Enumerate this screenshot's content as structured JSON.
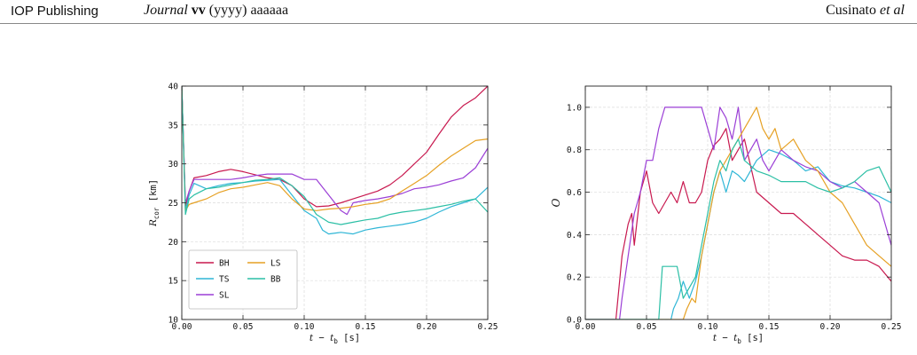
{
  "header": {
    "publisher": "IOP Publishing",
    "journal_name": "Journal",
    "journal_volume": "vv",
    "journal_year_pages": "(yyyy) aaaaaa",
    "authors_name": "Cusinato",
    "authors_etal": "et al"
  },
  "chart_data": [
    {
      "type": "line",
      "xlabel": "t − t_b [s]",
      "ylabel": "R_cor [km]",
      "xlim": [
        0.0,
        0.25
      ],
      "ylim": [
        10,
        40
      ],
      "xticks": [
        "0.00",
        "0.05",
        "0.10",
        "0.15",
        "0.20",
        "0.25"
      ],
      "yticks": [
        "10",
        "15",
        "20",
        "25",
        "30",
        "35",
        "40"
      ],
      "grid": true,
      "legend_position": "bottom-left",
      "series": [
        {
          "name": "BH",
          "color": "#c8194f",
          "x": [
            0.0,
            0.003,
            0.006,
            0.01,
            0.02,
            0.03,
            0.04,
            0.05,
            0.06,
            0.07,
            0.08,
            0.09,
            0.1,
            0.11,
            0.12,
            0.13,
            0.14,
            0.15,
            0.16,
            0.17,
            0.18,
            0.19,
            0.2,
            0.21,
            0.22,
            0.23,
            0.24,
            0.25
          ],
          "y": [
            40,
            24.5,
            26.5,
            28.2,
            28.5,
            29.0,
            29.3,
            29.0,
            28.6,
            28.2,
            28.0,
            27.2,
            25.5,
            24.5,
            24.6,
            25.0,
            25.5,
            26.0,
            26.5,
            27.3,
            28.5,
            30.0,
            31.5,
            33.8,
            36.0,
            37.5,
            38.5,
            40.0
          ]
        },
        {
          "name": "TS",
          "color": "#2fb6d6",
          "x": [
            0.0,
            0.003,
            0.006,
            0.01,
            0.02,
            0.03,
            0.04,
            0.05,
            0.06,
            0.07,
            0.08,
            0.09,
            0.1,
            0.11,
            0.115,
            0.12,
            0.13,
            0.14,
            0.15,
            0.16,
            0.17,
            0.18,
            0.19,
            0.2,
            0.21,
            0.22,
            0.23,
            0.24,
            0.25
          ],
          "y": [
            40,
            24.0,
            26.0,
            27.5,
            26.8,
            27.2,
            27.5,
            27.6,
            27.8,
            27.9,
            28.0,
            26.0,
            24.0,
            23.0,
            21.5,
            21.0,
            21.2,
            21.0,
            21.5,
            21.8,
            22.0,
            22.2,
            22.5,
            23.0,
            23.8,
            24.5,
            25.0,
            25.5,
            27.0
          ]
        },
        {
          "name": "SL",
          "color": "#9b3fd6",
          "x": [
            0.0,
            0.003,
            0.006,
            0.01,
            0.02,
            0.03,
            0.04,
            0.05,
            0.06,
            0.07,
            0.08,
            0.09,
            0.1,
            0.11,
            0.12,
            0.13,
            0.135,
            0.14,
            0.15,
            0.16,
            0.17,
            0.18,
            0.19,
            0.2,
            0.21,
            0.22,
            0.23,
            0.24,
            0.25
          ],
          "y": [
            40,
            25.0,
            26.5,
            28.0,
            28.0,
            28.0,
            28.0,
            28.2,
            28.5,
            28.7,
            28.7,
            28.7,
            28.0,
            28.0,
            26.0,
            24.0,
            23.5,
            25.0,
            25.3,
            25.5,
            25.8,
            26.2,
            26.8,
            27.0,
            27.3,
            27.8,
            28.2,
            29.5,
            32.0
          ]
        },
        {
          "name": "LS",
          "color": "#e6a124",
          "x": [
            0.0,
            0.003,
            0.006,
            0.01,
            0.02,
            0.03,
            0.04,
            0.05,
            0.06,
            0.07,
            0.08,
            0.09,
            0.1,
            0.11,
            0.12,
            0.13,
            0.14,
            0.15,
            0.16,
            0.17,
            0.18,
            0.19,
            0.2,
            0.21,
            0.22,
            0.23,
            0.24,
            0.25
          ],
          "y": [
            40,
            24.0,
            24.8,
            25.0,
            25.5,
            26.3,
            26.8,
            27.0,
            27.3,
            27.6,
            27.2,
            25.5,
            24.2,
            24.0,
            24.2,
            24.3,
            24.5,
            24.8,
            25.0,
            25.5,
            26.5,
            27.5,
            28.5,
            29.8,
            31.0,
            32.0,
            33.0,
            33.2
          ]
        },
        {
          "name": "BB",
          "color": "#2bbfa5",
          "x": [
            0.0,
            0.003,
            0.006,
            0.01,
            0.02,
            0.03,
            0.04,
            0.05,
            0.06,
            0.07,
            0.08,
            0.09,
            0.1,
            0.11,
            0.12,
            0.13,
            0.14,
            0.15,
            0.16,
            0.17,
            0.18,
            0.19,
            0.2,
            0.21,
            0.22,
            0.23,
            0.24,
            0.25
          ],
          "y": [
            40,
            23.5,
            25.5,
            26.0,
            26.8,
            27.0,
            27.3,
            27.6,
            27.9,
            28.0,
            28.2,
            27.2,
            25.8,
            23.5,
            22.5,
            22.2,
            22.5,
            22.8,
            23.0,
            23.5,
            23.8,
            24.0,
            24.2,
            24.5,
            24.8,
            25.2,
            25.5,
            23.8
          ]
        }
      ]
    },
    {
      "type": "line",
      "xlabel": "t − t_b [s]",
      "ylabel": "O",
      "xlim": [
        0.0,
        0.25
      ],
      "ylim": [
        0.0,
        1.1
      ],
      "xticks": [
        "0.00",
        "0.05",
        "0.10",
        "0.15",
        "0.20",
        "0.25"
      ],
      "yticks": [
        "0.0",
        "0.2",
        "0.4",
        "0.6",
        "0.8",
        "1.0"
      ],
      "grid": true,
      "series": [
        {
          "color": "#c8194f",
          "x": [
            0.0,
            0.025,
            0.03,
            0.035,
            0.038,
            0.04,
            0.045,
            0.05,
            0.055,
            0.06,
            0.065,
            0.07,
            0.075,
            0.08,
            0.085,
            0.09,
            0.095,
            0.1,
            0.105,
            0.11,
            0.115,
            0.12,
            0.125,
            0.13,
            0.14,
            0.15,
            0.16,
            0.17,
            0.18,
            0.19,
            0.2,
            0.21,
            0.22,
            0.23,
            0.24,
            0.25
          ],
          "y": [
            0.0,
            0.0,
            0.3,
            0.45,
            0.5,
            0.35,
            0.6,
            0.7,
            0.55,
            0.5,
            0.55,
            0.6,
            0.55,
            0.65,
            0.55,
            0.55,
            0.6,
            0.75,
            0.82,
            0.85,
            0.9,
            0.75,
            0.8,
            0.85,
            0.6,
            0.55,
            0.5,
            0.5,
            0.45,
            0.4,
            0.35,
            0.3,
            0.28,
            0.28,
            0.25,
            0.18
          ]
        },
        {
          "color": "#2fb6d6",
          "x": [
            0.0,
            0.07,
            0.072,
            0.076,
            0.08,
            0.085,
            0.09,
            0.095,
            0.1,
            0.105,
            0.11,
            0.115,
            0.12,
            0.125,
            0.13,
            0.135,
            0.14,
            0.15,
            0.16,
            0.17,
            0.18,
            0.19,
            0.2,
            0.21,
            0.22,
            0.23,
            0.24,
            0.25
          ],
          "y": [
            0.0,
            0.0,
            0.05,
            0.1,
            0.18,
            0.1,
            0.18,
            0.3,
            0.45,
            0.6,
            0.7,
            0.6,
            0.7,
            0.68,
            0.65,
            0.7,
            0.75,
            0.8,
            0.78,
            0.75,
            0.7,
            0.72,
            0.65,
            0.63,
            0.62,
            0.6,
            0.58,
            0.55
          ]
        },
        {
          "color": "#9b3fd6",
          "x": [
            0.0,
            0.028,
            0.03,
            0.035,
            0.04,
            0.045,
            0.05,
            0.055,
            0.06,
            0.065,
            0.07,
            0.08,
            0.085,
            0.09,
            0.095,
            0.1,
            0.105,
            0.11,
            0.115,
            0.12,
            0.125,
            0.13,
            0.135,
            0.14,
            0.145,
            0.15,
            0.16,
            0.17,
            0.18,
            0.19,
            0.2,
            0.21,
            0.22,
            0.23,
            0.24,
            0.25
          ],
          "y": [
            0.0,
            0.0,
            0.1,
            0.3,
            0.5,
            0.6,
            0.75,
            0.75,
            0.9,
            1.0,
            1.0,
            1.0,
            1.0,
            1.0,
            1.0,
            0.9,
            0.8,
            1.0,
            0.95,
            0.85,
            1.0,
            0.75,
            0.8,
            0.85,
            0.75,
            0.7,
            0.8,
            0.75,
            0.72,
            0.7,
            0.65,
            0.62,
            0.65,
            0.6,
            0.55,
            0.35
          ]
        },
        {
          "color": "#e6a124",
          "x": [
            0.0,
            0.08,
            0.083,
            0.087,
            0.09,
            0.095,
            0.1,
            0.105,
            0.11,
            0.115,
            0.12,
            0.125,
            0.13,
            0.135,
            0.14,
            0.145,
            0.15,
            0.155,
            0.16,
            0.17,
            0.18,
            0.19,
            0.2,
            0.21,
            0.22,
            0.23,
            0.24,
            0.25
          ],
          "y": [
            0.0,
            0.0,
            0.05,
            0.1,
            0.08,
            0.3,
            0.45,
            0.6,
            0.7,
            0.75,
            0.8,
            0.85,
            0.9,
            0.95,
            1.0,
            0.9,
            0.85,
            0.9,
            0.8,
            0.85,
            0.75,
            0.7,
            0.6,
            0.55,
            0.45,
            0.35,
            0.3,
            0.25
          ]
        },
        {
          "color": "#2bbfa5",
          "x": [
            0.0,
            0.06,
            0.063,
            0.07,
            0.075,
            0.08,
            0.085,
            0.09,
            0.095,
            0.1,
            0.105,
            0.11,
            0.115,
            0.12,
            0.125,
            0.13,
            0.14,
            0.15,
            0.16,
            0.17,
            0.18,
            0.19,
            0.2,
            0.21,
            0.22,
            0.23,
            0.24,
            0.25
          ],
          "y": [
            0.0,
            0.0,
            0.25,
            0.25,
            0.25,
            0.1,
            0.15,
            0.2,
            0.35,
            0.5,
            0.65,
            0.75,
            0.7,
            0.8,
            0.85,
            0.75,
            0.7,
            0.68,
            0.65,
            0.65,
            0.65,
            0.62,
            0.6,
            0.62,
            0.65,
            0.7,
            0.72,
            0.6
          ]
        }
      ]
    }
  ]
}
